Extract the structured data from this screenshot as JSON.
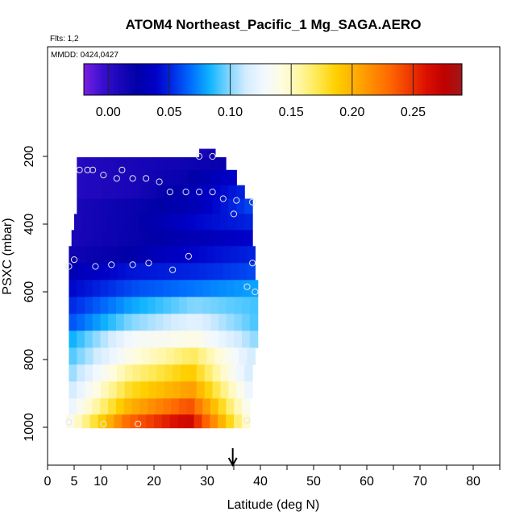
{
  "chart_data": {
    "type": "heatmap",
    "title": "ATOM4 Northeast_Pacific_1 Mg_SAGA.AERO",
    "flights_label": "Flts: 1,2",
    "dates_label": "MMDD: 0424,0427",
    "xlabel": "Latitude (deg N)",
    "ylabel": "PSXC (mbar)",
    "xlim": [
      0,
      85
    ],
    "ylim": [
      1000,
      100
    ],
    "xticks": [
      0,
      5,
      10,
      20,
      30,
      40,
      50,
      60,
      70,
      80
    ],
    "yticks": [
      200,
      400,
      600,
      800,
      1000
    ],
    "colorbar": {
      "range": [
        -0.02,
        0.29
      ],
      "ticks": [
        0.0,
        0.05,
        0.1,
        0.15,
        0.2,
        0.25
      ],
      "tick_labels": [
        "0.00",
        "0.05",
        "0.10",
        "0.15",
        "0.20",
        "0.25"
      ],
      "colors": [
        "#7a1fe0",
        "#3a0fd0",
        "#1a06b8",
        "#0000a8",
        "#0000c8",
        "#0030e8",
        "#0070ff",
        "#10b4ff",
        "#7ad4ff",
        "#d4ecff",
        "#f2f8ff",
        "#fffce0",
        "#fff6a0",
        "#ffe850",
        "#ffd000",
        "#ffb000",
        "#ff8c00",
        "#ff6800",
        "#f03c00",
        "#dc1000",
        "#c00000",
        "#a01818"
      ]
    },
    "layers": [
      {
        "p": 190,
        "lat": [
          28.5,
          31.5
        ],
        "v": [
          0.01,
          0.015
        ]
      },
      {
        "p": 215,
        "lat": [
          5.5,
          33.5
        ],
        "v": [
          0.005,
          0.01,
          0.015,
          0.02
        ]
      },
      {
        "p": 265,
        "lat": [
          5.5,
          35.5
        ],
        "v": [
          0.005,
          0.01,
          0.02,
          0.04
        ]
      },
      {
        "p": 305,
        "lat": [
          5.5,
          37.0
        ],
        "v": [
          0.005,
          0.01,
          0.03,
          0.05
        ]
      },
      {
        "p": 345,
        "lat": [
          5.5,
          38.5
        ],
        "v": [
          0.01,
          0.02,
          0.03,
          0.06
        ]
      },
      {
        "p": 395,
        "lat": [
          5.0,
          38.5
        ],
        "v": [
          0.01,
          0.02,
          0.04,
          0.05
        ]
      },
      {
        "p": 440,
        "lat": [
          4.5,
          38.5
        ],
        "v": [
          0.01,
          0.02,
          0.03,
          0.04
        ]
      },
      {
        "p": 490,
        "lat": [
          4.0,
          39.0
        ],
        "v": [
          0.015,
          0.025,
          0.04,
          0.05
        ]
      },
      {
        "p": 540,
        "lat": [
          4.0,
          39.0
        ],
        "v": [
          0.03,
          0.045,
          0.05,
          0.06
        ]
      },
      {
        "p": 590,
        "lat": [
          4.0,
          39.5
        ],
        "v": [
          0.04,
          0.06,
          0.07,
          0.08
        ]
      },
      {
        "p": 640,
        "lat": [
          4.0,
          39.5
        ],
        "v": [
          0.05,
          0.08,
          0.1,
          0.09
        ]
      },
      {
        "p": 690,
        "lat": [
          4.0,
          39.5
        ],
        "v": [
          0.06,
          0.1,
          0.12,
          0.09
        ]
      },
      {
        "p": 740,
        "lat": [
          4.0,
          39.5
        ],
        "v": [
          0.08,
          0.13,
          0.14,
          0.1
        ]
      },
      {
        "p": 790,
        "lat": [
          4.0,
          39.0
        ],
        "v": [
          0.09,
          0.14,
          0.17,
          0.11
        ]
      },
      {
        "p": 840,
        "lat": [
          4.0,
          38.5
        ],
        "v": [
          0.1,
          0.16,
          0.19,
          0.11
        ]
      },
      {
        "p": 890,
        "lat": [
          4.0,
          38.5
        ],
        "v": [
          0.11,
          0.18,
          0.21,
          0.12
        ]
      },
      {
        "p": 940,
        "lat": [
          4.0,
          38.0
        ],
        "v": [
          0.12,
          0.2,
          0.24,
          0.13
        ]
      },
      {
        "p": 985,
        "lat": [
          3.5,
          38.0
        ],
        "v": [
          0.13,
          0.23,
          0.27,
          0.14
        ]
      }
    ],
    "sample_points": [
      [
        28.5,
        200
      ],
      [
        31,
        200
      ],
      [
        6,
        240
      ],
      [
        7.5,
        240
      ],
      [
        8.5,
        240
      ],
      [
        10.5,
        255
      ],
      [
        13,
        265
      ],
      [
        14,
        240
      ],
      [
        16,
        265
      ],
      [
        18.5,
        265
      ],
      [
        21,
        275
      ],
      [
        23,
        305
      ],
      [
        26,
        305
      ],
      [
        28.5,
        305
      ],
      [
        31,
        305
      ],
      [
        33,
        325
      ],
      [
        35.5,
        330
      ],
      [
        38.5,
        335
      ],
      [
        35,
        370
      ],
      [
        4,
        525
      ],
      [
        5,
        505
      ],
      [
        9,
        525
      ],
      [
        12,
        520
      ],
      [
        16,
        520
      ],
      [
        19,
        515
      ],
      [
        23.5,
        535
      ],
      [
        26.5,
        495
      ],
      [
        38.5,
        515
      ],
      [
        37.5,
        585
      ],
      [
        39,
        600
      ],
      [
        4,
        985
      ],
      [
        10.5,
        990
      ],
      [
        17,
        990
      ],
      [
        37.5,
        980
      ]
    ],
    "arrow_lat": 34.8
  }
}
